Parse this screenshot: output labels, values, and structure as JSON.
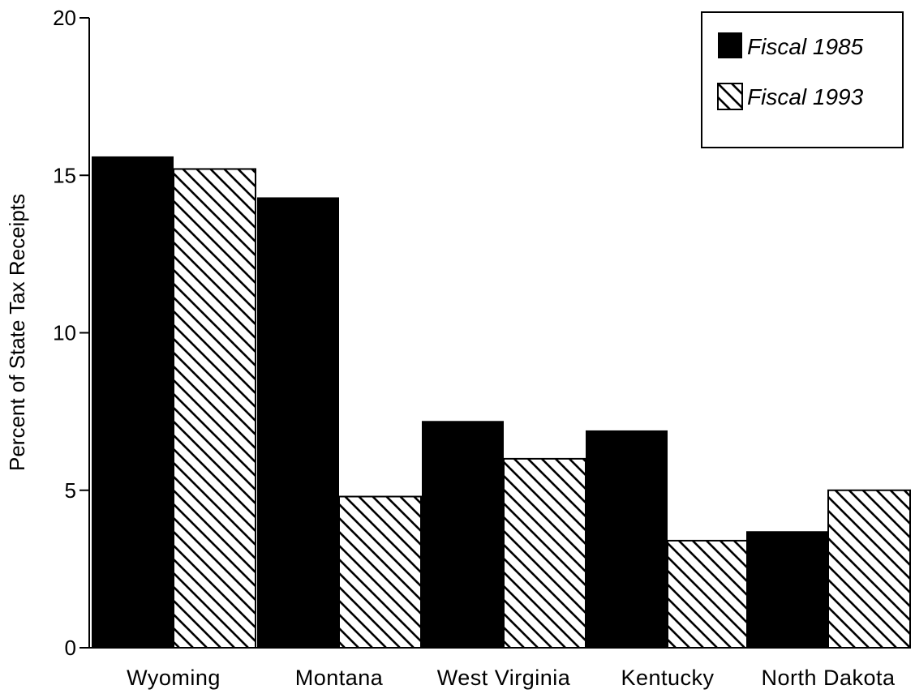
{
  "chart_data": {
    "type": "bar",
    "title": "",
    "xlabel": "",
    "ylabel": "Percent of State Tax Receipts",
    "ylim": [
      0,
      20
    ],
    "yticks": [
      0,
      5,
      10,
      15,
      20
    ],
    "grid": false,
    "legend_position": "top-right",
    "categories": [
      "Wyoming",
      "Montana",
      "West Virginia",
      "Kentucky",
      "North Dakota"
    ],
    "series": [
      {
        "name": "Fiscal 1985",
        "fill": "solid",
        "color": "#000000",
        "values": [
          15.6,
          14.3,
          7.2,
          6.9,
          3.7
        ]
      },
      {
        "name": "Fiscal 1993",
        "fill": "diagonal-hatch",
        "color": "#000000",
        "values": [
          15.2,
          4.8,
          6.0,
          3.4,
          5.0
        ]
      }
    ]
  }
}
